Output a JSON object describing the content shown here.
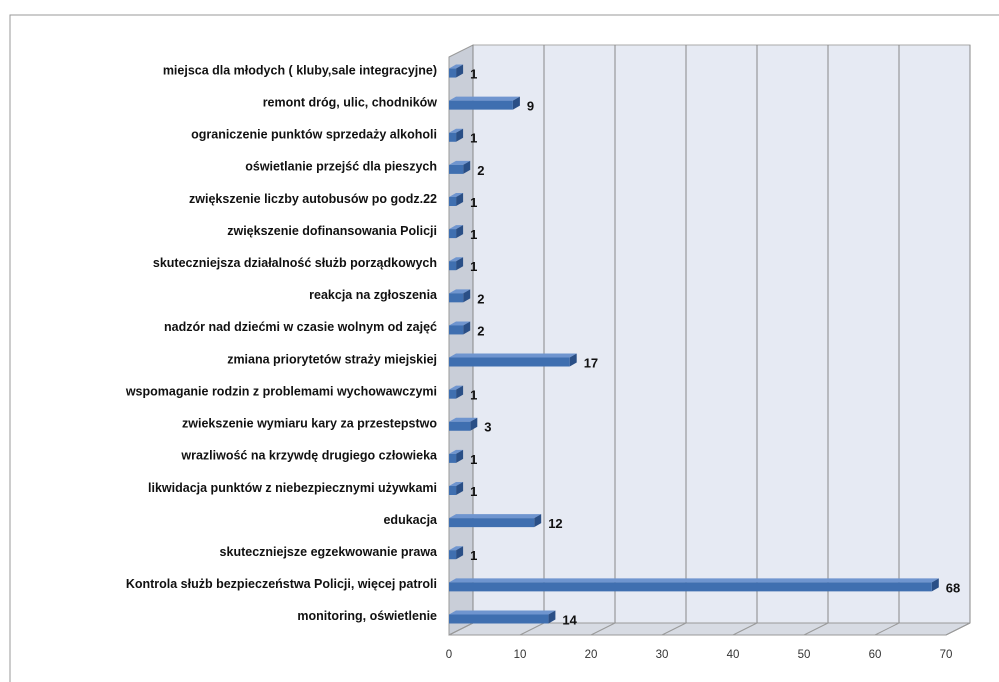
{
  "chart_data": {
    "type": "bar3d_horizontal",
    "categories": [
      "miejsca dla młodych ( kluby,sale integracyjne)",
      "remont dróg, ulic, chodników",
      "ograniczenie punktów sprzedaży alkoholi",
      "oświetlanie przejść dla pieszych",
      "zwiększenie liczby autobusów po godz.22",
      "zwiększenie dofinansowania Policji",
      "skuteczniejsza działalność służb porządkowych",
      "reakcja na zgłoszenia",
      "nadzór nad dziećmi w czasie wolnym od zajęć",
      "zmiana priorytetów straży miejskiej",
      "wspomaganie rodzin z problemami wychowawczymi",
      "zwiekszenie wymiaru kary za przestepstwo",
      "wrazliwość na krzywdę drugiego człowieka",
      "likwidacja punktów z niebezpiecznymi używkami",
      "edukacja",
      "skuteczniejsze egzekwowanie prawa",
      "Kontrola służb bezpieczeństwa Policji, więcej patroli",
      "monitoring, oświetlenie"
    ],
    "values": [
      1,
      9,
      1,
      2,
      1,
      1,
      1,
      2,
      2,
      17,
      1,
      3,
      1,
      1,
      12,
      1,
      68,
      14
    ],
    "color": "#3f6fb0",
    "xlim": [
      0,
      70
    ],
    "xticks": [
      0,
      10,
      20,
      30,
      40,
      50,
      60,
      70
    ],
    "grid": true
  }
}
